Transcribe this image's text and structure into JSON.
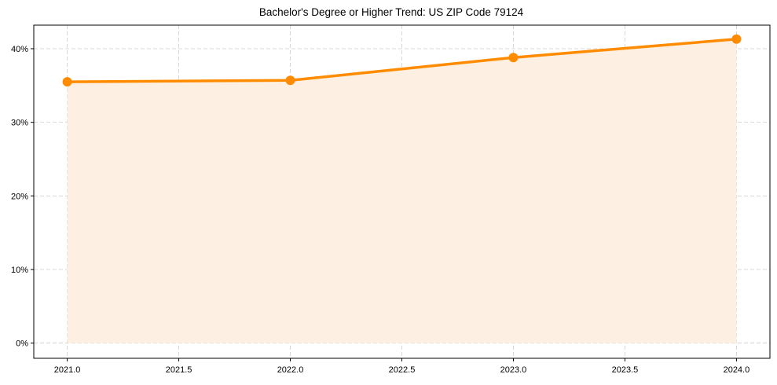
{
  "chart_data": {
    "type": "line",
    "title": "Bachelor's Degree or Higher Trend: US ZIP Code 79124",
    "xlabel": "",
    "ylabel": "",
    "x": [
      2021,
      2022,
      2023,
      2024
    ],
    "series": [
      {
        "name": "Bachelor's Degree or Higher",
        "values": [
          35.5,
          35.7,
          38.8,
          41.3
        ],
        "color": "#ff8c00",
        "fill": "#fdf0e2",
        "marker": "circle"
      }
    ],
    "xticks": [
      "2021.0",
      "2021.5",
      "2022.0",
      "2022.5",
      "2023.0",
      "2023.5",
      "2024.0"
    ],
    "xtick_values": [
      2021.0,
      2021.5,
      2022.0,
      2022.5,
      2023.0,
      2023.5,
      2024.0
    ],
    "yticks": [
      "0%",
      "10%",
      "20%",
      "30%",
      "40%"
    ],
    "ytick_values": [
      0,
      10,
      20,
      30,
      40
    ],
    "xlim": [
      2020.85,
      2024.15
    ],
    "ylim": [
      -2.06,
      43.2
    ],
    "grid": true,
    "legend": "none"
  }
}
